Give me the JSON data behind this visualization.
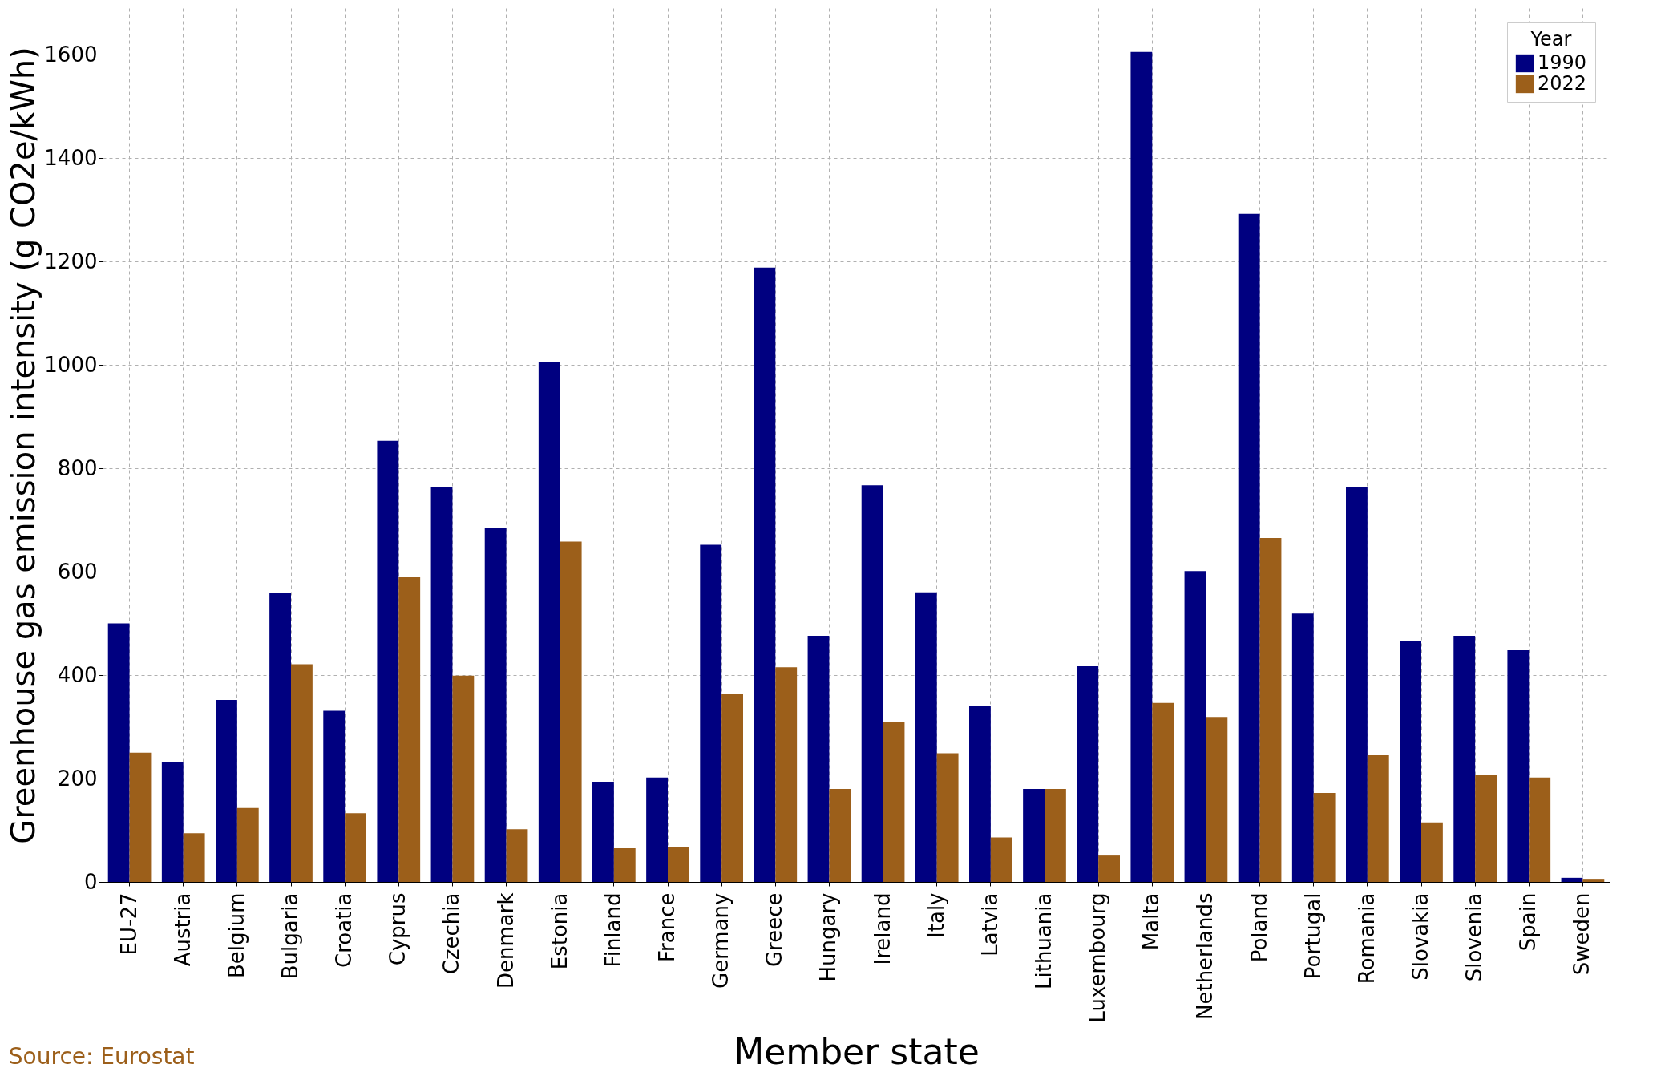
{
  "chart_data": {
    "type": "bar",
    "xlabel": "Member state",
    "ylabel": "Greenhouse gas emission intensity (g CO2e/kWh)",
    "legend_title": "Year",
    "legend": "top right",
    "grid": true,
    "line_style": "dashed",
    "categories": [
      "EU-27",
      "Austria",
      "Belgium",
      "Bulgaria",
      "Croatia",
      "Cyprus",
      "Czechia",
      "Denmark",
      "Estonia",
      "Finland",
      "France",
      "Germany",
      "Greece",
      "Hungary",
      "Ireland",
      "Italy",
      "Latvia",
      "Lithuania",
      "Luxembourg",
      "Malta",
      "Netherlands",
      "Poland",
      "Portugal",
      "Romania",
      "Slovakia",
      "Slovenia",
      "Spain",
      "Sweden"
    ],
    "series": [
      {
        "name": "1990",
        "color": "#000080",
        "values": [
          500,
          231,
          352,
          558,
          331,
          853,
          763,
          685,
          1006,
          194,
          202,
          652,
          1188,
          476,
          767,
          560,
          341,
          180,
          417,
          1605,
          601,
          1292,
          519,
          763,
          466,
          476,
          448,
          8
        ]
      },
      {
        "name": "2022",
        "color": "#9c5f1a",
        "values": [
          250,
          94,
          143,
          421,
          133,
          589,
          399,
          102,
          658,
          65,
          67,
          364,
          415,
          180,
          309,
          249,
          86,
          180,
          51,
          346,
          319,
          665,
          172,
          245,
          115,
          207,
          202,
          6
        ]
      }
    ],
    "ylim": [
      0,
      1690
    ],
    "yticks": [
      0,
      200,
      400,
      600,
      800,
      1000,
      1200,
      1400,
      1600
    ],
    "annotations": [
      "Source: Eurostat"
    ]
  }
}
